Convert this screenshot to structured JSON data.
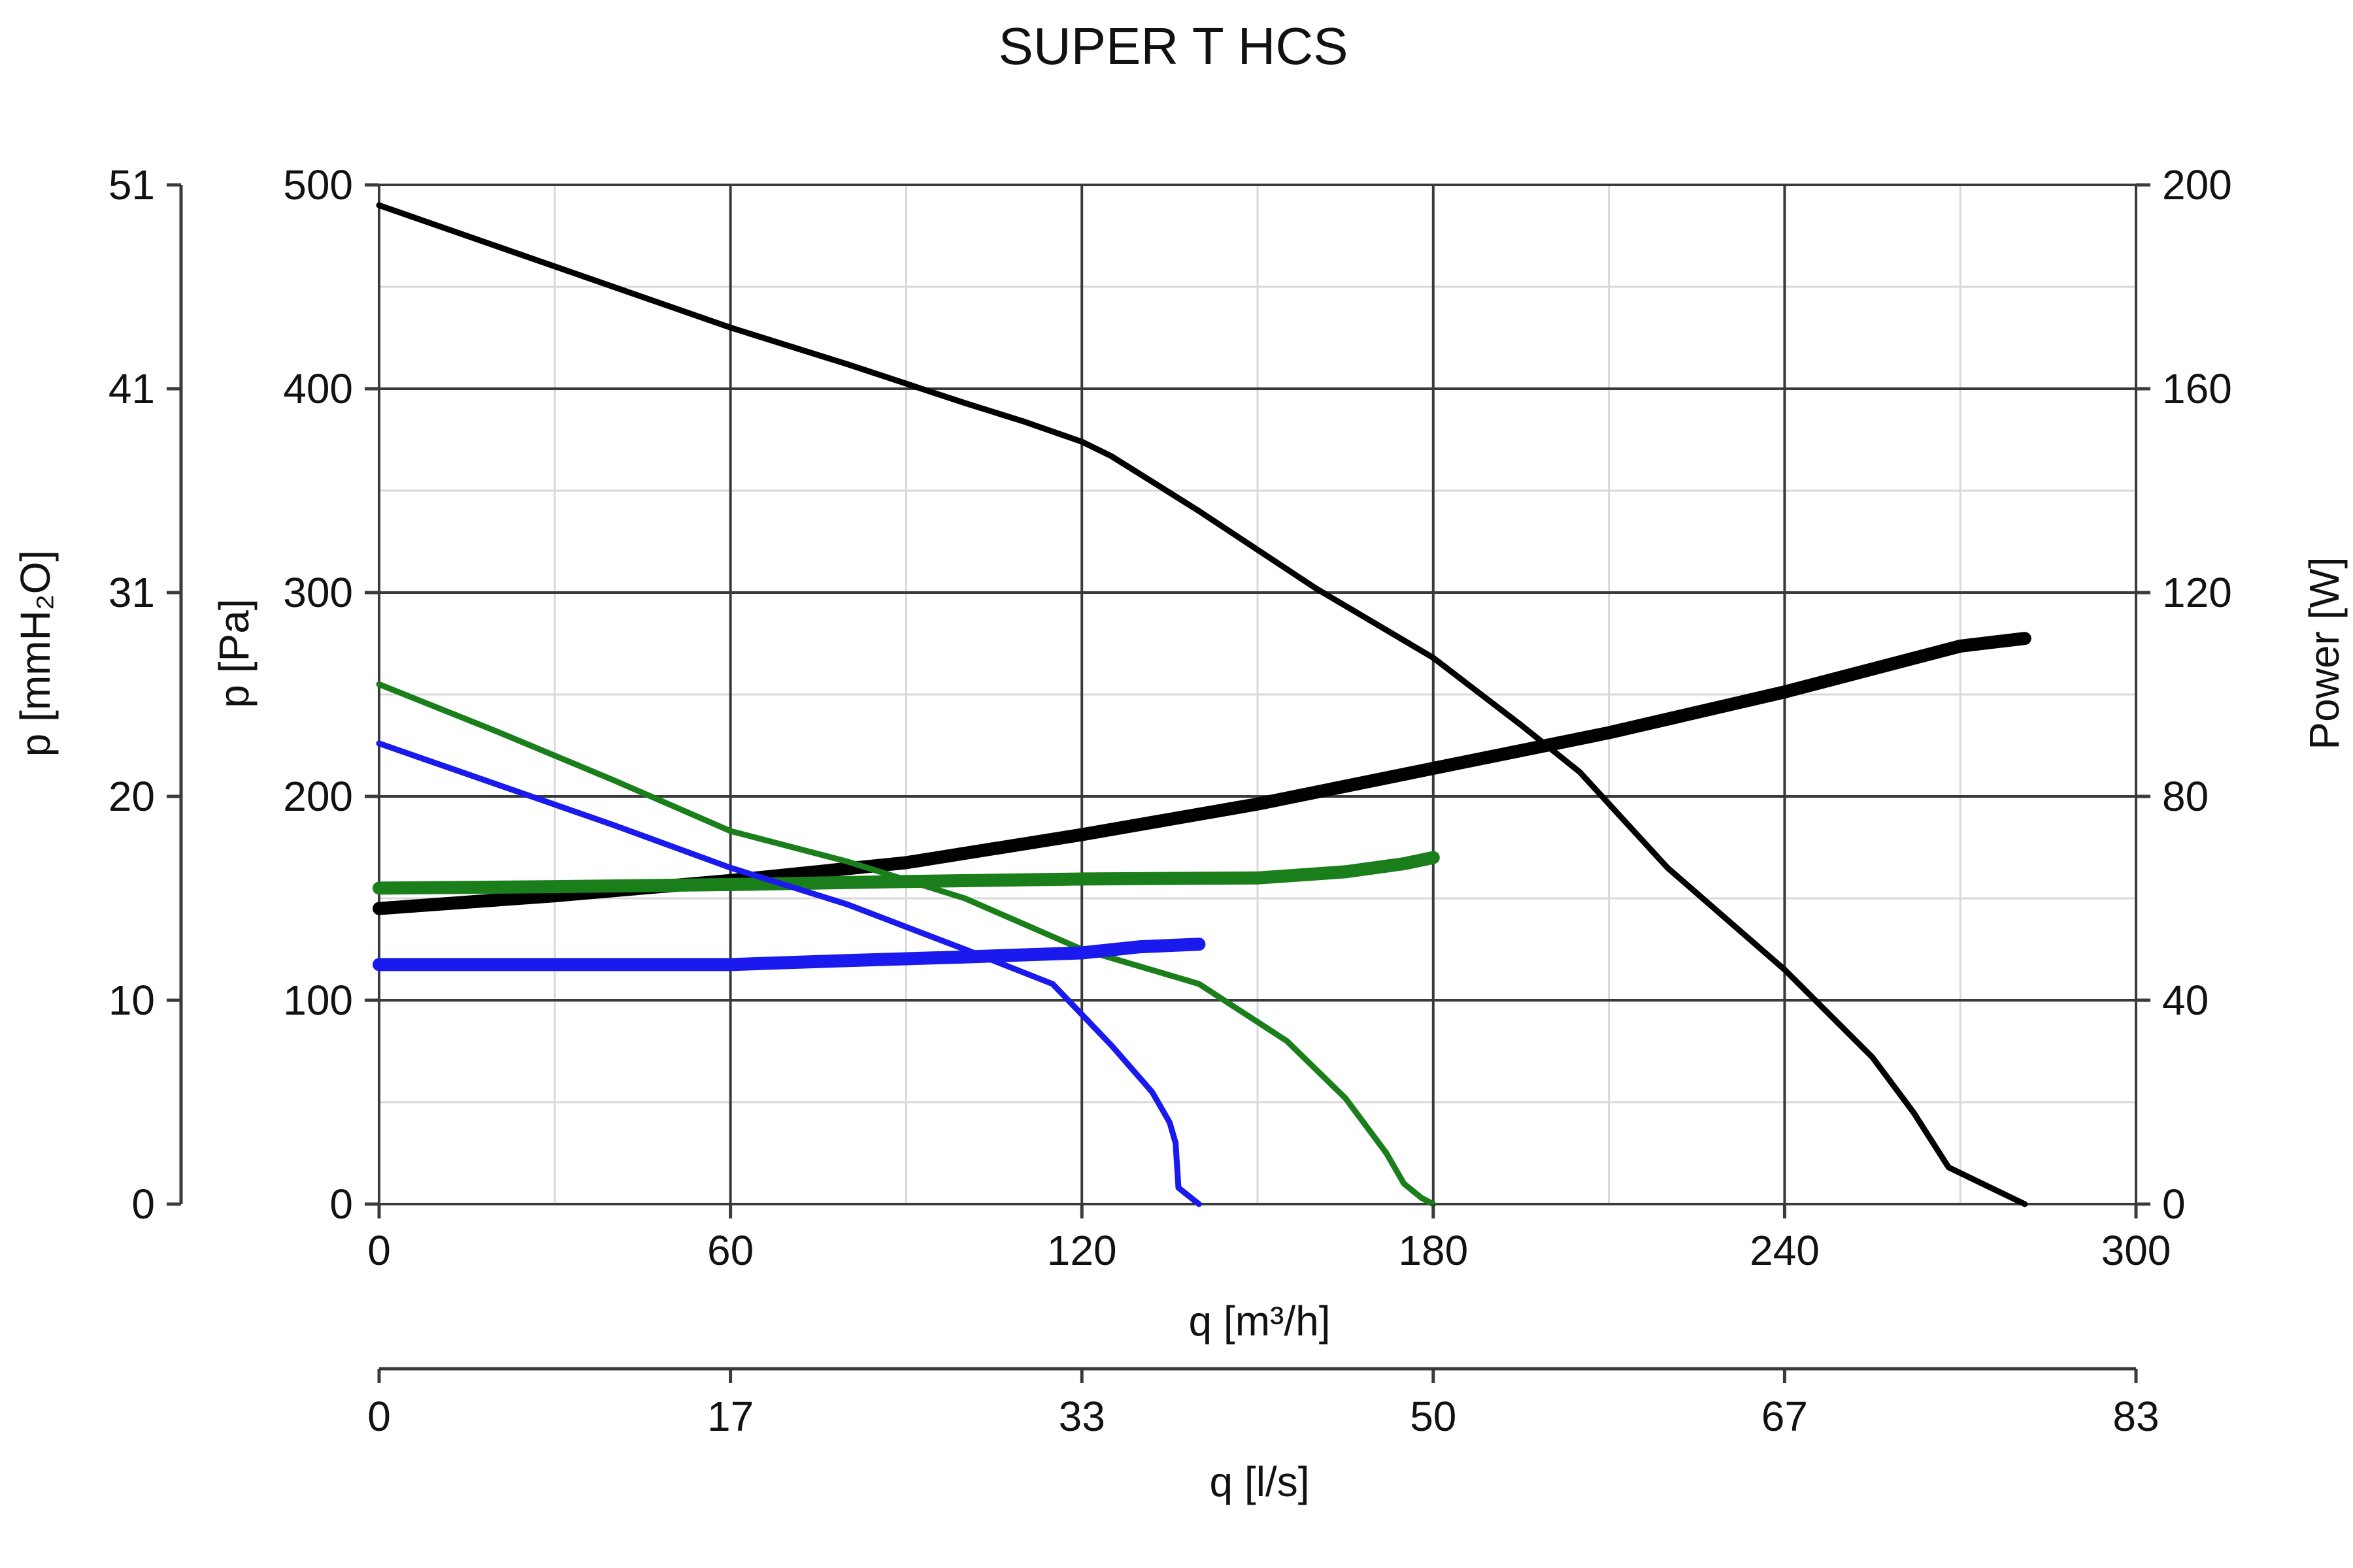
{
  "chart_data": {
    "type": "line",
    "title": "SUPER T HCS",
    "xlabel": "q [m³/h]",
    "xlim": [
      0,
      300
    ],
    "x_ticks": [
      "0",
      "60",
      "120",
      "180",
      "240",
      "300"
    ],
    "x2label": "q [l/s]",
    "x2_ticks": [
      "0",
      "17",
      "33",
      "50",
      "67",
      "83"
    ],
    "ylabel": "p [Pa]",
    "ylim": [
      0,
      500
    ],
    "y_ticks": [
      "0",
      "100",
      "200",
      "300",
      "400",
      "500"
    ],
    "y2label": "p [mmH₂O]",
    "y2_ticks": [
      "0",
      "10",
      "20",
      "31",
      "41",
      "51"
    ],
    "y3label": "Power [W]",
    "y3lim": [
      0,
      200
    ],
    "y3_ticks": [
      "0",
      "40",
      "80",
      "120",
      "160",
      "200"
    ],
    "grid": true,
    "colors": {
      "black": "#000000",
      "green": "#1a7f1a",
      "blue": "#1a1aee",
      "grid_major": "#3a3a3a",
      "grid_minor": "#d9d9d9"
    },
    "series": [
      {
        "kind": "pressure",
        "color": "#000000",
        "axis": "p [Pa]",
        "x": [
          0,
          20,
          40,
          60,
          80,
          100,
          110,
          120,
          125,
          140,
          160,
          180,
          195,
          205,
          220,
          240,
          255,
          262,
          268,
          281
        ],
        "y": [
          490,
          470,
          450,
          430,
          412,
          393,
          384,
          374,
          367,
          340,
          302,
          268,
          235,
          212,
          165,
          115,
          72,
          45,
          18,
          0
        ]
      },
      {
        "kind": "power",
        "color": "#000000",
        "axis": "Power [W]",
        "x": [
          0,
          30,
          60,
          90,
          120,
          150,
          180,
          210,
          240,
          270,
          281
        ],
        "y": [
          58,
          60.5,
          63.5,
          67,
          72.5,
          78.5,
          85.5,
          92.5,
          100.5,
          109.5,
          111
        ]
      },
      {
        "kind": "pressure",
        "color": "#1a7f1a",
        "axis": "p [Pa]",
        "x": [
          0,
          20,
          40,
          60,
          80,
          100,
          120,
          140,
          155,
          165,
          172,
          175,
          178,
          180
        ],
        "y": [
          255,
          232,
          208,
          183,
          168,
          150,
          125,
          108,
          80,
          52,
          25,
          10,
          3,
          0
        ]
      },
      {
        "kind": "power",
        "color": "#1a7f1a",
        "axis": "Power [W]",
        "x": [
          0,
          30,
          60,
          90,
          120,
          150,
          165,
          175,
          180
        ],
        "y": [
          62,
          62.3,
          62.7,
          63.3,
          63.8,
          64,
          65.2,
          66.8,
          68
        ]
      },
      {
        "kind": "pressure",
        "color": "#1a1aee",
        "axis": "p [Pa]",
        "x": [
          0,
          20,
          40,
          60,
          80,
          100,
          115,
          125,
          132,
          135,
          136,
          136.5,
          140
        ],
        "y": [
          226,
          206,
          186,
          165,
          147,
          125,
          108,
          78,
          55,
          40,
          30,
          8,
          0
        ]
      },
      {
        "kind": "power",
        "color": "#1a1aee",
        "axis": "Power [W]",
        "x": [
          0,
          30,
          60,
          80,
          100,
          120,
          130,
          140
        ],
        "y": [
          47,
          47,
          47,
          47.8,
          48.5,
          49.3,
          50.5,
          51
        ]
      }
    ]
  }
}
